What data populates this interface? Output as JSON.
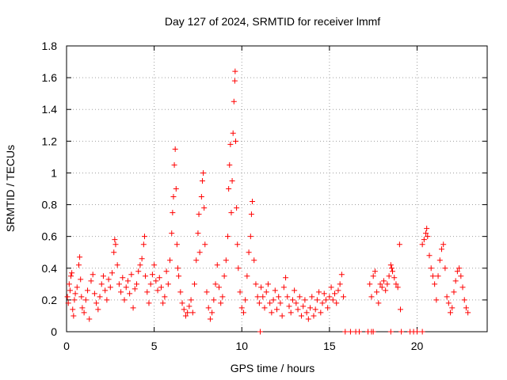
{
  "chart_data": {
    "type": "scatter",
    "title": "Day 127 of 2024, SRMTID for receiver lmmf",
    "xlabel": "GPS time / hours",
    "ylabel": "SRMTID / TECUs",
    "xlim": [
      0,
      24
    ],
    "ylim": [
      0,
      1.8
    ],
    "xticks": [
      0,
      5,
      10,
      15,
      20
    ],
    "xtick_labels": [
      "0",
      "5",
      "10",
      "15",
      "20"
    ],
    "yticks": [
      0,
      0.2,
      0.4,
      0.6,
      0.8,
      1.0,
      1.2,
      1.4,
      1.6,
      1.8
    ],
    "ytick_labels": [
      "0",
      "0.2",
      "0.4",
      "0.6",
      "0.8",
      "1",
      "1.2",
      "1.4",
      "1.6",
      "1.8"
    ],
    "grid": true,
    "marker": "plus",
    "color": "#ff0000",
    "series": [
      {
        "name": "SRMTID",
        "points": [
          [
            0.05,
            0.22
          ],
          [
            0.1,
            0.18
          ],
          [
            0.15,
            0.3
          ],
          [
            0.2,
            0.26
          ],
          [
            0.25,
            0.35
          ],
          [
            0.3,
            0.37
          ],
          [
            0.35,
            0.14
          ],
          [
            0.4,
            0.1
          ],
          [
            0.45,
            0.2
          ],
          [
            0.5,
            0.24
          ],
          [
            0.6,
            0.28
          ],
          [
            0.7,
            0.42
          ],
          [
            0.75,
            0.47
          ],
          [
            0.8,
            0.33
          ],
          [
            0.85,
            0.22
          ],
          [
            0.9,
            0.15
          ],
          [
            1.0,
            0.12
          ],
          [
            1.1,
            0.2
          ],
          [
            1.2,
            0.26
          ],
          [
            1.3,
            0.08
          ],
          [
            1.4,
            0.32
          ],
          [
            1.5,
            0.36
          ],
          [
            1.6,
            0.24
          ],
          [
            1.7,
            0.18
          ],
          [
            1.8,
            0.14
          ],
          [
            1.9,
            0.22
          ],
          [
            2.0,
            0.3
          ],
          [
            2.1,
            0.35
          ],
          [
            2.2,
            0.26
          ],
          [
            2.3,
            0.2
          ],
          [
            2.4,
            0.33
          ],
          [
            2.5,
            0.28
          ],
          [
            2.6,
            0.37
          ],
          [
            2.7,
            0.5
          ],
          [
            2.75,
            0.58
          ],
          [
            2.8,
            0.55
          ],
          [
            2.9,
            0.42
          ],
          [
            3.0,
            0.3
          ],
          [
            3.1,
            0.25
          ],
          [
            3.2,
            0.34
          ],
          [
            3.3,
            0.2
          ],
          [
            3.4,
            0.28
          ],
          [
            3.5,
            0.32
          ],
          [
            3.6,
            0.24
          ],
          [
            3.7,
            0.36
          ],
          [
            3.8,
            0.15
          ],
          [
            3.9,
            0.27
          ],
          [
            4.0,
            0.3
          ],
          [
            4.1,
            0.38
          ],
          [
            4.2,
            0.42
          ],
          [
            4.3,
            0.46
          ],
          [
            4.4,
            0.55
          ],
          [
            4.45,
            0.6
          ],
          [
            4.5,
            0.35
          ],
          [
            4.6,
            0.25
          ],
          [
            4.7,
            0.18
          ],
          [
            4.8,
            0.3
          ],
          [
            4.9,
            0.36
          ],
          [
            5.0,
            0.42
          ],
          [
            5.1,
            0.32
          ],
          [
            5.2,
            0.26
          ],
          [
            5.3,
            0.34
          ],
          [
            5.4,
            0.28
          ],
          [
            5.5,
            0.18
          ],
          [
            5.6,
            0.22
          ],
          [
            5.7,
            0.38
          ],
          [
            5.8,
            0.3
          ],
          [
            5.9,
            0.45
          ],
          [
            6.0,
            0.62
          ],
          [
            6.05,
            0.75
          ],
          [
            6.1,
            0.85
          ],
          [
            6.15,
            1.05
          ],
          [
            6.2,
            1.15
          ],
          [
            6.25,
            0.9
          ],
          [
            6.3,
            0.55
          ],
          [
            6.35,
            0.4
          ],
          [
            6.4,
            0.35
          ],
          [
            6.5,
            0.25
          ],
          [
            6.6,
            0.18
          ],
          [
            6.7,
            0.14
          ],
          [
            6.8,
            0.1
          ],
          [
            6.9,
            0.12
          ],
          [
            7.0,
            0.16
          ],
          [
            7.1,
            0.2
          ],
          [
            7.2,
            0.12
          ],
          [
            7.3,
            0.3
          ],
          [
            7.4,
            0.45
          ],
          [
            7.5,
            0.62
          ],
          [
            7.55,
            0.74
          ],
          [
            7.6,
            0.5
          ],
          [
            7.7,
            0.85
          ],
          [
            7.75,
            0.95
          ],
          [
            7.8,
            1.0
          ],
          [
            7.85,
            0.78
          ],
          [
            7.9,
            0.55
          ],
          [
            8.0,
            0.25
          ],
          [
            8.1,
            0.15
          ],
          [
            8.2,
            0.08
          ],
          [
            8.3,
            0.12
          ],
          [
            8.4,
            0.2
          ],
          [
            8.5,
            0.3
          ],
          [
            8.6,
            0.42
          ],
          [
            8.7,
            0.28
          ],
          [
            8.8,
            0.18
          ],
          [
            8.9,
            0.22
          ],
          [
            9.0,
            0.35
          ],
          [
            9.1,
            0.45
          ],
          [
            9.2,
            0.6
          ],
          [
            9.25,
            0.9
          ],
          [
            9.3,
            1.05
          ],
          [
            9.35,
            1.18
          ],
          [
            9.4,
            0.75
          ],
          [
            9.45,
            0.95
          ],
          [
            9.5,
            1.25
          ],
          [
            9.55,
            1.45
          ],
          [
            9.6,
            1.58
          ],
          [
            9.62,
            1.64
          ],
          [
            9.65,
            1.2
          ],
          [
            9.7,
            0.78
          ],
          [
            9.75,
            0.55
          ],
          [
            9.8,
            0.4
          ],
          [
            9.9,
            0.25
          ],
          [
            10.0,
            0.15
          ],
          [
            10.1,
            0.12
          ],
          [
            10.2,
            0.2
          ],
          [
            10.3,
            0.35
          ],
          [
            10.4,
            0.5
          ],
          [
            10.5,
            0.6
          ],
          [
            10.55,
            0.74
          ],
          [
            10.6,
            0.82
          ],
          [
            10.7,
            0.45
          ],
          [
            10.8,
            0.3
          ],
          [
            10.9,
            0.22
          ],
          [
            11.0,
            0.18
          ],
          [
            11.1,
            0.28
          ],
          [
            11.2,
            0.22
          ],
          [
            11.3,
            0.15
          ],
          [
            11.4,
            0.25
          ],
          [
            11.5,
            0.3
          ],
          [
            11.6,
            0.18
          ],
          [
            11.7,
            0.12
          ],
          [
            11.8,
            0.2
          ],
          [
            11.9,
            0.26
          ],
          [
            12.0,
            0.14
          ],
          [
            12.1,
            0.22
          ],
          [
            12.2,
            0.18
          ],
          [
            12.3,
            0.1
          ],
          [
            12.4,
            0.28
          ],
          [
            12.5,
            0.34
          ],
          [
            12.6,
            0.22
          ],
          [
            12.7,
            0.16
          ],
          [
            12.8,
            0.12
          ],
          [
            12.9,
            0.2
          ],
          [
            13.0,
            0.26
          ],
          [
            13.1,
            0.18
          ],
          [
            13.2,
            0.14
          ],
          [
            13.3,
            0.22
          ],
          [
            13.4,
            0.1
          ],
          [
            13.5,
            0.16
          ],
          [
            13.6,
            0.2
          ],
          [
            13.7,
            0.12
          ],
          [
            13.8,
            0.08
          ],
          [
            13.9,
            0.15
          ],
          [
            14.0,
            0.22
          ],
          [
            14.1,
            0.1
          ],
          [
            14.2,
            0.14
          ],
          [
            14.3,
            0.2
          ],
          [
            14.4,
            0.25
          ],
          [
            14.5,
            0.12
          ],
          [
            14.6,
            0.18
          ],
          [
            14.7,
            0.24
          ],
          [
            14.8,
            0.2
          ],
          [
            14.9,
            0.15
          ],
          [
            15.0,
            0.22
          ],
          [
            15.1,
            0.28
          ],
          [
            15.2,
            0.2
          ],
          [
            15.3,
            0.24
          ],
          [
            15.4,
            0.18
          ],
          [
            15.5,
            0.26
          ],
          [
            15.6,
            0.3
          ],
          [
            15.7,
            0.36
          ],
          [
            15.8,
            0.22
          ],
          [
            11.05,
            0.0
          ],
          [
            15.9,
            0.0
          ],
          [
            16.2,
            0.0
          ],
          [
            16.5,
            0.0
          ],
          [
            16.7,
            0.0
          ],
          [
            17.2,
            0.0
          ],
          [
            17.4,
            0.0
          ],
          [
            17.5,
            0.0
          ],
          [
            18.5,
            0.0
          ],
          [
            19.1,
            0.0
          ],
          [
            19.6,
            0.0
          ],
          [
            19.8,
            0.0
          ],
          [
            20.0,
            0.0
          ],
          [
            20.3,
            0.0
          ],
          [
            17.3,
            0.3
          ],
          [
            17.4,
            0.22
          ],
          [
            17.5,
            0.35
          ],
          [
            17.6,
            0.38
          ],
          [
            17.7,
            0.25
          ],
          [
            17.8,
            0.18
          ],
          [
            17.9,
            0.3
          ],
          [
            18.0,
            0.28
          ],
          [
            18.1,
            0.32
          ],
          [
            18.2,
            0.26
          ],
          [
            18.3,
            0.3
          ],
          [
            18.4,
            0.35
          ],
          [
            18.5,
            0.42
          ],
          [
            18.55,
            0.4
          ],
          [
            18.6,
            0.38
          ],
          [
            18.7,
            0.34
          ],
          [
            18.8,
            0.3
          ],
          [
            18.9,
            0.28
          ],
          [
            19.0,
            0.55
          ],
          [
            19.05,
            0.14
          ],
          [
            20.3,
            0.55
          ],
          [
            20.4,
            0.58
          ],
          [
            20.5,
            0.62
          ],
          [
            20.55,
            0.65
          ],
          [
            20.6,
            0.6
          ],
          [
            20.7,
            0.48
          ],
          [
            20.8,
            0.4
          ],
          [
            20.9,
            0.35
          ],
          [
            21.0,
            0.3
          ],
          [
            21.1,
            0.2
          ],
          [
            21.2,
            0.35
          ],
          [
            21.3,
            0.45
          ],
          [
            21.4,
            0.52
          ],
          [
            21.5,
            0.55
          ],
          [
            21.6,
            0.4
          ],
          [
            21.7,
            0.22
          ],
          [
            21.8,
            0.18
          ],
          [
            21.9,
            0.12
          ],
          [
            22.0,
            0.15
          ],
          [
            22.1,
            0.25
          ],
          [
            22.2,
            0.32
          ],
          [
            22.3,
            0.38
          ],
          [
            22.4,
            0.4
          ],
          [
            22.5,
            0.35
          ],
          [
            22.6,
            0.28
          ],
          [
            22.7,
            0.2
          ],
          [
            22.8,
            0.15
          ],
          [
            22.9,
            0.12
          ]
        ]
      }
    ]
  }
}
